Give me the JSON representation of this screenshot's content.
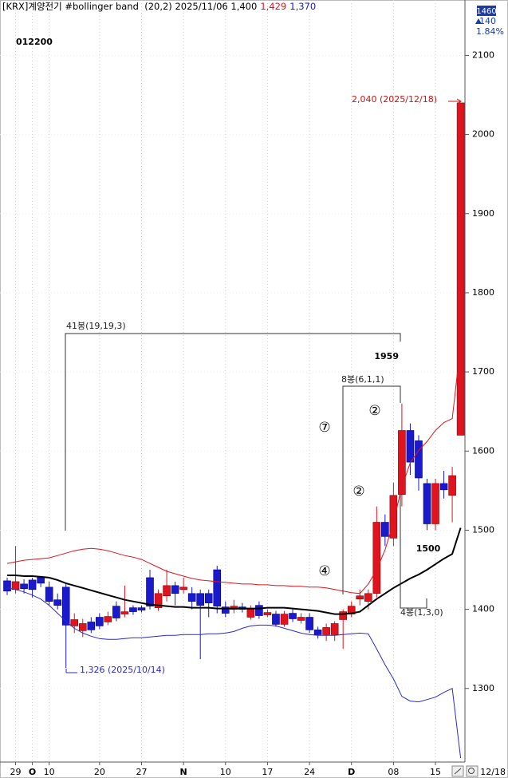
{
  "header": {
    "text": "[KRX]계양전기 #bollinger band  (20,2) 2025/11/06 1,400",
    "high": "1,429",
    "low": "1,370"
  },
  "code": "012200",
  "price_box": {
    "price": "1460",
    "change": "140",
    "rate": "1.84%"
  },
  "date_end": "12/18",
  "chart_data": {
    "type": "candlestick",
    "categories": [
      null,
      "29",
      null,
      "O",
      null,
      "10",
      null,
      null,
      null,
      null,
      null,
      "20",
      null,
      null,
      null,
      null,
      "27",
      null,
      null,
      null,
      null,
      "N",
      null,
      null,
      null,
      null,
      "10",
      null,
      null,
      null,
      null,
      "17",
      null,
      null,
      null,
      null,
      "24",
      null,
      null,
      null,
      null,
      "D",
      null,
      null,
      null,
      null,
      "08",
      null,
      null,
      null,
      null,
      "15",
      null,
      null,
      null
    ],
    "open": [
      1436,
      1425,
      1432,
      1437,
      1440,
      1428,
      1412,
      1428,
      1379,
      1373,
      1384,
      1390,
      1384,
      1404,
      1394,
      1402,
      1402,
      1440,
      1402,
      1417,
      1430,
      1425,
      1420,
      1420,
      1420,
      1450,
      1403,
      1400,
      1403,
      1390,
      1405,
      1393,
      1394,
      1381,
      1395,
      1386,
      1390,
      1374,
      1368,
      1368,
      1387,
      1394,
      1413,
      1410,
      1420,
      1510,
      1490,
      1545,
      1626,
      1613,
      1559,
      1508,
      1559,
      1544,
      1620
    ],
    "high": [
      1440,
      1480,
      1438,
      1440,
      1442,
      1435,
      1420,
      1433,
      1395,
      1388,
      1390,
      1395,
      1397,
      1410,
      1430,
      1405,
      1405,
      1450,
      1425,
      1450,
      1435,
      1440,
      1428,
      1425,
      1425,
      1455,
      1410,
      1412,
      1408,
      1405,
      1410,
      1400,
      1398,
      1398,
      1400,
      1395,
      1395,
      1378,
      1382,
      1385,
      1400,
      1410,
      1425,
      1425,
      1530,
      1520,
      1560,
      1660,
      1635,
      1620,
      1565,
      1565,
      1575,
      1580,
      2040
    ],
    "low": [
      1418,
      1420,
      1420,
      1415,
      1428,
      1405,
      1400,
      1326,
      1370,
      1365,
      1370,
      1375,
      1380,
      1385,
      1390,
      1393,
      1396,
      1400,
      1398,
      1410,
      1405,
      1420,
      1400,
      1337,
      1390,
      1395,
      1390,
      1395,
      1396,
      1387,
      1388,
      1390,
      1378,
      1378,
      1384,
      1382,
      1370,
      1363,
      1360,
      1360,
      1350,
      1390,
      1405,
      1400,
      1415,
      1480,
      1480,
      1530,
      1570,
      1550,
      1500,
      1500,
      1540,
      1510,
      1620
    ],
    "close": [
      1423,
      1435,
      1426,
      1425,
      1433,
      1410,
      1405,
      1380,
      1387,
      1382,
      1374,
      1379,
      1391,
      1389,
      1397,
      1397,
      1399,
      1404,
      1420,
      1430,
      1420,
      1428,
      1410,
      1405,
      1408,
      1404,
      1395,
      1404,
      1400,
      1400,
      1392,
      1396,
      1381,
      1394,
      1388,
      1390,
      1374,
      1368,
      1377,
      1382,
      1397,
      1404,
      1417,
      1420,
      1510,
      1492,
      1544,
      1626,
      1586,
      1566,
      1508,
      1559,
      1551,
      1569,
      2040
    ],
    "up_color": "#e0141e",
    "down_color": "#1a1acc",
    "series": [
      {
        "color": "#e0141e",
        "values": [
          1458,
          1460,
          1462,
          1463,
          1464,
          1465,
          1468,
          1471,
          1474,
          1476,
          1477,
          1476,
          1474,
          1471,
          1468,
          1466,
          1463,
          1458,
          1453,
          1448,
          1445,
          1442,
          1439,
          1437,
          1436,
          1435,
          1434,
          1433,
          1432,
          1432,
          1431,
          1431,
          1430,
          1430,
          1429,
          1429,
          1428,
          1428,
          1427,
          1425,
          1423,
          1421,
          1420,
          1432,
          1450,
          1475,
          1510,
          1555,
          1585,
          1601,
          1612,
          1626,
          1636,
          1641,
          1735
        ]
      },
      {
        "color": "#000000",
        "values": [
          1443,
          1443,
          1442,
          1442,
          1441,
          1440,
          1437,
          1433,
          1430,
          1427,
          1424,
          1421,
          1418,
          1415,
          1412,
          1410,
          1408,
          1406,
          1405,
          1404,
          1403,
          1403,
          1402,
          1402,
          1402,
          1401,
          1401,
          1401,
          1401,
          1401,
          1401,
          1402,
          1402,
          1402,
          1401,
          1400,
          1399,
          1398,
          1396,
          1394,
          1394,
          1395,
          1397,
          1405,
          1413,
          1420,
          1427,
          1433,
          1439,
          1444,
          1450,
          1457,
          1464,
          1470,
          1503
        ]
      },
      {
        "color": "#2a2ad0",
        "values": [
          1427,
          1425,
          1422,
          1418,
          1413,
          1405,
          1395,
          1385,
          1376,
          1370,
          1366,
          1363,
          1362,
          1362,
          1363,
          1364,
          1364,
          1365,
          1366,
          1367,
          1367,
          1368,
          1368,
          1368,
          1369,
          1369,
          1370,
          1372,
          1376,
          1379,
          1380,
          1380,
          1379,
          1376,
          1373,
          1370,
          1368,
          1367,
          1367,
          1367,
          1368,
          1369,
          1370,
          1369,
          1350,
          1330,
          1312,
          1290,
          1284,
          1283,
          1286,
          1289,
          1295,
          1300,
          1212
        ]
      }
    ],
    "ylim": [
      1207,
      2170
    ],
    "yticks": [
      1300,
      1400,
      1500,
      1600,
      1700,
      1800,
      1900,
      2000,
      2100
    ],
    "grid": true,
    "annotations": [
      {
        "text": "2,040 (2025/12/18)",
        "color": "#cc1010"
      },
      {
        "text": "1,326 (2025/10/14)",
        "color": "#2a2ad0"
      },
      {
        "text": "41봉(19,19,3)",
        "color": "#222222"
      },
      {
        "text": "1959",
        "color": "#000000"
      },
      {
        "text": "8봉(6,1,1)",
        "color": "#222222"
      },
      {
        "text": "⑦",
        "color": "#000000"
      },
      {
        "text": "②",
        "color": "#000000"
      },
      {
        "text": "②",
        "color": "#000000"
      },
      {
        "text": "④",
        "color": "#000000"
      },
      {
        "text": "1500",
        "color": "#000000"
      },
      {
        "text": "4봉(1,3,0)",
        "color": "#222222"
      }
    ]
  }
}
